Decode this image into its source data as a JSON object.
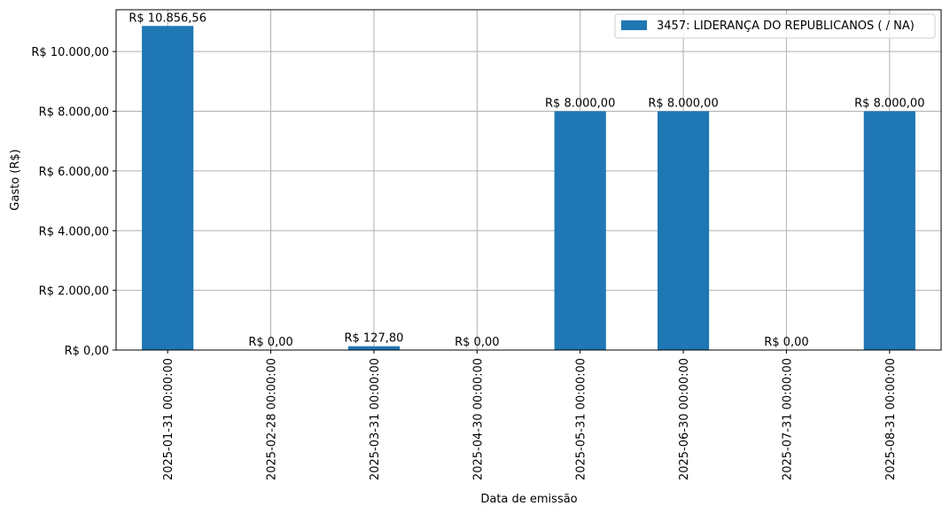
{
  "chart_data": {
    "type": "bar",
    "title": "",
    "xlabel": "Data de emissão",
    "ylabel": "Gasto (R$)",
    "categories": [
      "2025-01-31 00:00:00",
      "2025-02-28 00:00:00",
      "2025-03-31 00:00:00",
      "2025-04-30 00:00:00",
      "2025-05-31 00:00:00",
      "2025-06-30 00:00:00",
      "2025-07-31 00:00:00",
      "2025-08-31 00:00:00"
    ],
    "series": [
      {
        "name": "3457: LIDERANÇA DO REPUBLICANOS ( / NA)",
        "values": [
          10856.56,
          0,
          127.8,
          0,
          8000,
          8000,
          0,
          8000
        ],
        "labels": [
          "R$ 10.856,56",
          "R$ 0,00",
          "R$ 127,80",
          "R$ 0,00",
          "R$ 8.000,00",
          "R$ 8.000,00",
          "R$ 0,00",
          "R$ 8.000,00"
        ],
        "color": "#1f77b4"
      }
    ],
    "yticks": [
      0,
      2000,
      4000,
      6000,
      8000,
      10000
    ],
    "ytick_labels": [
      "R$ 0,00",
      "R$ 2.000,00",
      "R$ 4.000,00",
      "R$ 6.000,00",
      "R$ 8.000,00",
      "R$ 10.000,00"
    ],
    "ylim": [
      0,
      11399.39
    ],
    "grid": true,
    "legend_position": "top-right"
  }
}
